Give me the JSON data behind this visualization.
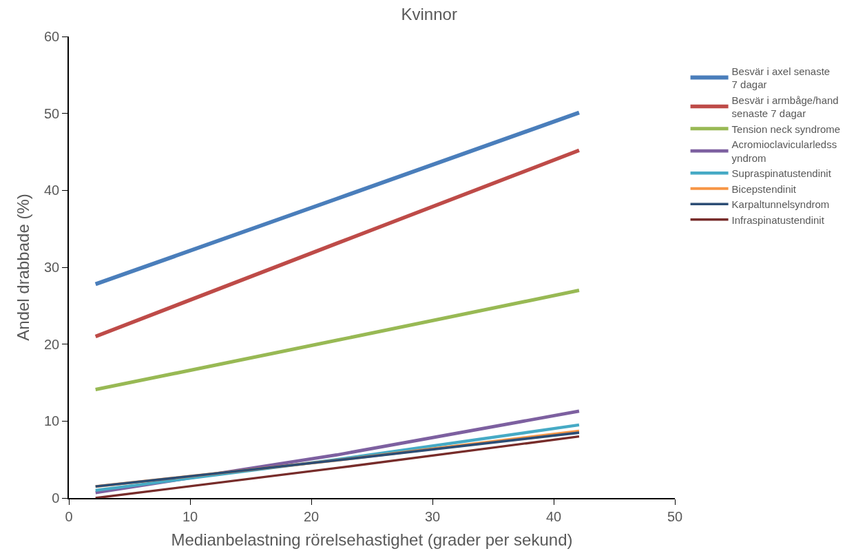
{
  "chart_data": {
    "type": "line",
    "title": "Kvinnor",
    "xlabel": "Medianbelastning rörelsehastighet (grader per sekund)",
    "ylabel": "Andel drabbade (%)",
    "x": [
      2.2,
      22.1,
      42.1
    ],
    "xlim": [
      0,
      50
    ],
    "xticks": [
      0,
      10,
      20,
      30,
      40,
      50
    ],
    "ylim": [
      0,
      60
    ],
    "yticks": [
      0,
      10,
      20,
      30,
      40,
      50,
      60
    ],
    "legend": "right",
    "marker": "none",
    "line_style": "solid",
    "series": [
      {
        "name": "Besvär i axel senaste 7 dagar",
        "color": "#4a7ebb",
        "values": [
          27.8,
          38.9,
          50.1
        ]
      },
      {
        "name": "Besvär i armbåge/hand senaste 7 dagar",
        "color": "#be4b48",
        "values": [
          21.0,
          33.1,
          45.2
        ]
      },
      {
        "name": "Tension neck syndrome",
        "color": "#98b954",
        "values": [
          14.1,
          20.5,
          27.0
        ]
      },
      {
        "name": "Acromioclavicularledssyndrom",
        "color": "#7d60a0",
        "values": [
          0.7,
          5.6,
          11.3
        ]
      },
      {
        "name": "Supraspinatustendinit",
        "color": "#46aac5",
        "values": [
          1.0,
          5.0,
          9.5
        ]
      },
      {
        "name": "Bicepstendinit",
        "color": "#f79646",
        "values": [
          1.5,
          4.9,
          8.7
        ]
      },
      {
        "name": "Karpaltunnelsyndrom",
        "color": "#2c4d75",
        "values": [
          1.5,
          4.9,
          8.5
        ]
      },
      {
        "name": "Infraspinatustendinit",
        "color": "#772c2a",
        "values": [
          0.0,
          3.9,
          8.0
        ]
      }
    ]
  }
}
